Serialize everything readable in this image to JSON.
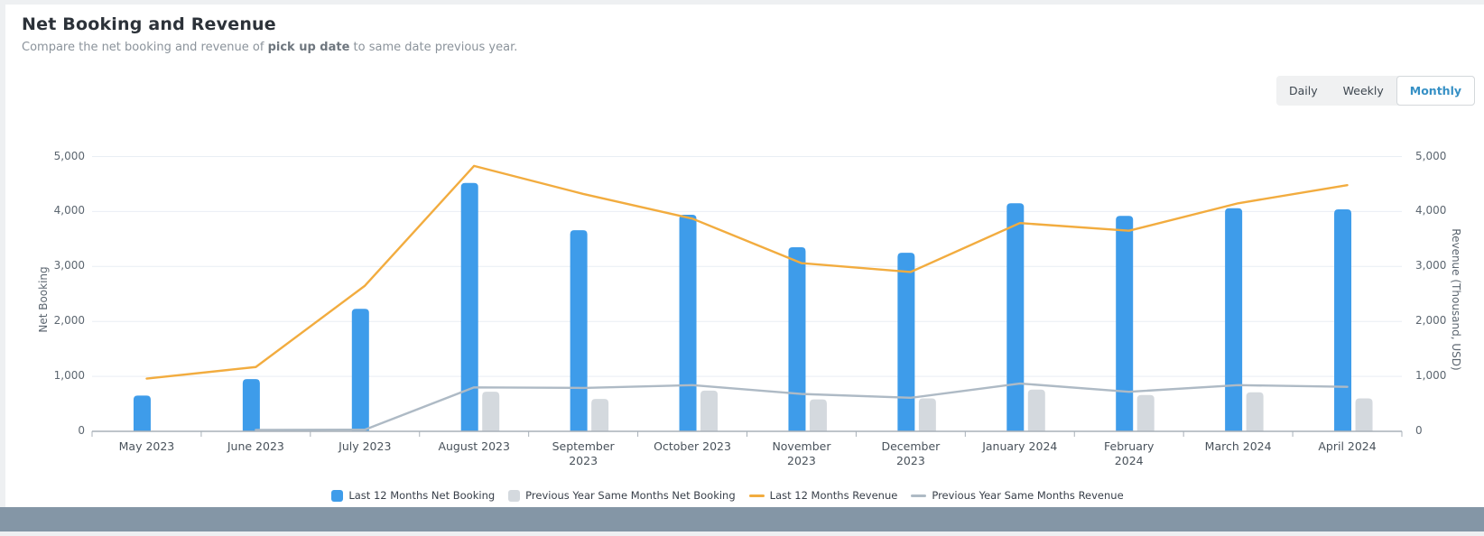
{
  "page": {
    "title": "Net Booking and Revenue",
    "subtitle_prefix": "Compare the net booking and revenue of ",
    "subtitle_bold": "pick up date",
    "subtitle_suffix": " to same date previous year."
  },
  "toolbar": {
    "options": [
      "Daily",
      "Weekly",
      "Monthly"
    ],
    "active": "Monthly"
  },
  "chart_data": {
    "type": "bar+line dual-axis combo",
    "categories": [
      "May 2023",
      "June 2023",
      "July 2023",
      "August 2023",
      "September\n2023",
      "October 2023",
      "November\n2023",
      "December\n2023",
      "January 2024",
      "February\n2024",
      "March 2024",
      "April 2024"
    ],
    "series": [
      {
        "name": "Last 12 Months Net Booking",
        "type": "bar",
        "axis": "left",
        "color": "#3E9CEA",
        "values": [
          650,
          950,
          2230,
          4520,
          3660,
          3940,
          3350,
          3250,
          4150,
          3920,
          4060,
          4040
        ]
      },
      {
        "name": "Previous Year Same Months Net Booking",
        "type": "bar",
        "axis": "left",
        "color": "#D4D9DE",
        "values": [
          null,
          null,
          null,
          720,
          590,
          740,
          580,
          600,
          760,
          660,
          710,
          600
        ]
      },
      {
        "name": "Last 12 Months Revenue",
        "type": "line",
        "axis": "right",
        "color": "#F2AC3F",
        "values": [
          960,
          1170,
          2650,
          4830,
          4320,
          3870,
          3060,
          2900,
          3790,
          3650,
          4150,
          4480
        ]
      },
      {
        "name": "Previous Year Same Months Revenue",
        "type": "line",
        "axis": "right",
        "color": "#AEBAC5",
        "values": [
          null,
          25,
          30,
          800,
          790,
          840,
          680,
          610,
          870,
          720,
          840,
          810
        ]
      }
    ],
    "left_axis": {
      "label": "Net Booking",
      "ticks": [
        "0",
        "1,000",
        "2,000",
        "3,000",
        "4,000",
        "5,000"
      ],
      "tick_values": [
        0,
        1000,
        2000,
        3000,
        4000,
        5000
      ],
      "range": [
        0,
        5000
      ]
    },
    "right_axis": {
      "label": "Revenue (Thousand, USD)",
      "ticks": [
        "0",
        "1,000",
        "2,000",
        "3,000",
        "4,000",
        "5,000"
      ],
      "tick_values": [
        0,
        1000,
        2000,
        3000,
        4000,
        5000
      ],
      "range": [
        0,
        5000
      ]
    },
    "grid": true,
    "legend_position": "bottom"
  }
}
